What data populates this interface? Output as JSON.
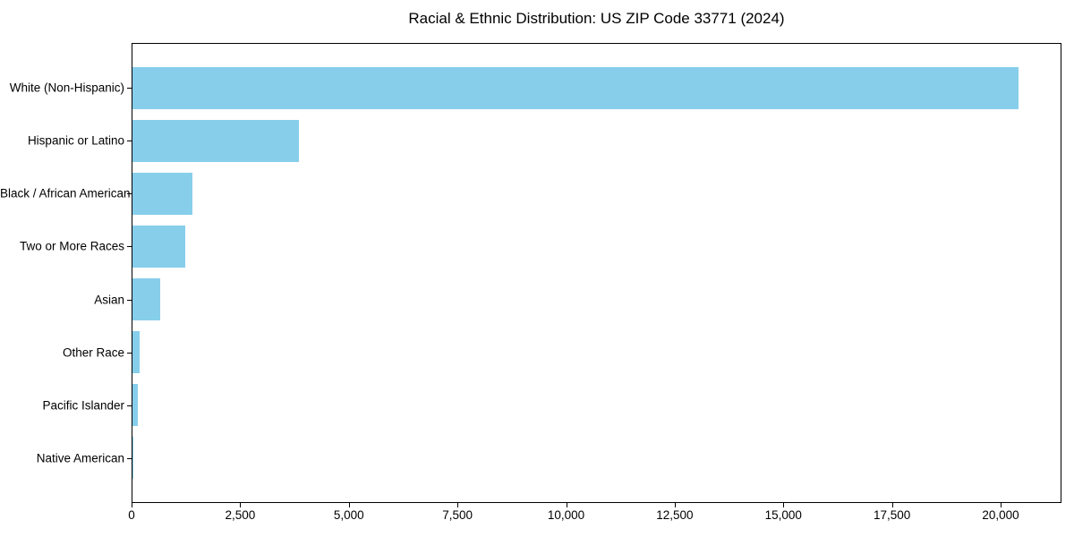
{
  "figure": {
    "background_color": "#ffffff",
    "text_color": "#000000"
  },
  "chart_data": {
    "type": "bar",
    "orientation": "horizontal",
    "title": "Racial & Ethnic Distribution: US ZIP Code 33771 (2024)",
    "categories": [
      "White (Non-Hispanic)",
      "Hispanic or Latino",
      "Black / African American",
      "Two or More Races",
      "Asian",
      "Other Race",
      "Pacific Islander",
      "Native American"
    ],
    "values": [
      20400,
      3840,
      1380,
      1215,
      630,
      170,
      130,
      20
    ],
    "xlabel": "",
    "ylabel": "",
    "xlim": [
      0,
      21400
    ],
    "xticks": [
      0,
      2500,
      5000,
      7500,
      10000,
      12500,
      15000,
      17500,
      20000
    ],
    "xtick_labels": [
      "0",
      "2,500",
      "5,000",
      "7,500",
      "10,000",
      "12,500",
      "15,000",
      "17,500",
      "20,000"
    ],
    "bar_color": "#87CEEB",
    "axis_color": "#000000",
    "grid": false,
    "legend": null,
    "bar_height_fraction": 0.8
  }
}
